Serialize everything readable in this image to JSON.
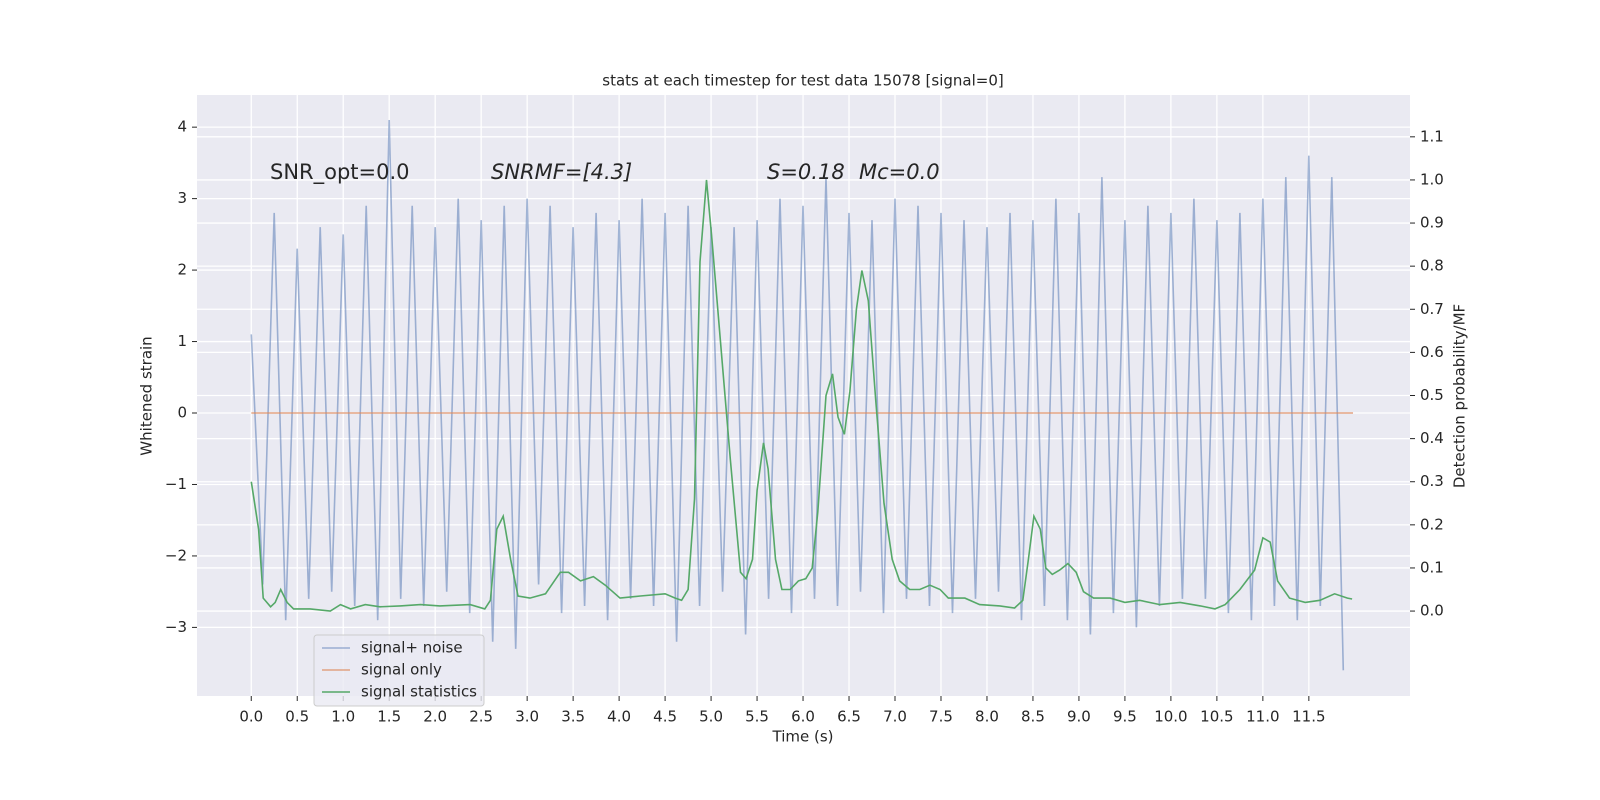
{
  "chart_data": {
    "type": "line",
    "title": "stats at each timestep for test data 15078 [signal=0]",
    "xlabel": "Time (s)",
    "ylabel": "Whitened strain",
    "y2label": "Detection probability/MF",
    "annotations": [
      "SNR_opt=0.0",
      "SNRMF=[4.3]",
      "S=0.18",
      "Mc=0.0"
    ],
    "grid": true,
    "legend": "lower left",
    "xlim": [
      -0.59,
      12.6
    ],
    "ylim": [
      -3.96,
      4.45
    ],
    "y2lim": [
      -0.197,
      1.197
    ],
    "xticks": [
      {
        "value": 0,
        "label": "0.0"
      },
      0.5,
      {
        "value": 1,
        "label": "1.0"
      },
      1.5,
      {
        "value": 2,
        "label": "2.0"
      },
      2.5,
      {
        "value": 3,
        "label": "3.0"
      },
      3.5,
      {
        "value": 4,
        "label": "4.0"
      },
      4.5,
      {
        "value": 5,
        "label": "5.0"
      },
      5.5,
      {
        "value": 6,
        "label": "6.0"
      },
      6.5,
      {
        "value": 7,
        "label": "7.0"
      },
      7.5,
      {
        "value": 8,
        "label": "8.0"
      },
      8.5,
      {
        "value": 9,
        "label": "9.0"
      },
      9.5,
      {
        "value": 10,
        "label": "10.0"
      },
      10.5,
      {
        "value": 11,
        "label": "11.0"
      },
      11.5
    ],
    "yticks": [
      {
        "value": -3,
        "label": "−3"
      },
      {
        "value": -2,
        "label": "−2"
      },
      {
        "value": -1,
        "label": "−1"
      },
      0,
      1,
      2,
      3,
      4
    ],
    "y2ticks": [
      {
        "value": 0,
        "label": "0.0"
      },
      0.1,
      0.2,
      0.3,
      0.4,
      0.5,
      0.6,
      0.7,
      0.8,
      0.9,
      {
        "value": 1,
        "label": "1.0"
      },
      1.1
    ],
    "series": [
      {
        "name": "signal+ noise",
        "color": "#4c72b0",
        "opacity": 0.5,
        "x": [
          0,
          0.125,
          0.25,
          0.375,
          0.5,
          0.625,
          0.75,
          0.875,
          1,
          1.125,
          1.25,
          1.375,
          1.5,
          1.625,
          1.75,
          1.875,
          2,
          2.125,
          2.25,
          2.375,
          2.5,
          2.625,
          2.75,
          2.875,
          3,
          3.125,
          3.25,
          3.375,
          3.5,
          3.625,
          3.75,
          3.875,
          4,
          4.125,
          4.25,
          4.375,
          4.5,
          4.625,
          4.75,
          4.875,
          5,
          5.125,
          5.25,
          5.375,
          5.5,
          5.625,
          5.75,
          5.875,
          6,
          6.125,
          6.25,
          6.375,
          6.5,
          6.625,
          6.75,
          6.875,
          7,
          7.125,
          7.25,
          7.375,
          7.5,
          7.625,
          7.75,
          7.875,
          8,
          8.125,
          8.25,
          8.375,
          8.5,
          8.625,
          8.75,
          8.875,
          9,
          9.125,
          9.25,
          9.375,
          9.5,
          9.625,
          9.75,
          9.875,
          10,
          10.125,
          10.25,
          10.375,
          10.5,
          10.625,
          10.75,
          10.875,
          11,
          11.125,
          11.25,
          11.375,
          11.5,
          11.625,
          11.75,
          11.875
        ],
        "values": [
          1.1,
          -2.4,
          2.8,
          -2.9,
          2.3,
          -2.6,
          2.6,
          -2.5,
          2.5,
          -2.7,
          2.9,
          -2.9,
          4.1,
          -2.6,
          2.9,
          -2.7,
          2.6,
          -2.5,
          3.0,
          -2.8,
          2.7,
          -3.2,
          2.9,
          -3.3,
          3.0,
          -2.4,
          2.9,
          -2.8,
          2.6,
          -2.7,
          2.8,
          -2.9,
          2.7,
          -2.6,
          3.0,
          -2.7,
          2.8,
          -3.2,
          2.9,
          -2.7,
          2.6,
          -2.5,
          2.6,
          -3.1,
          2.7,
          -2.6,
          3.0,
          -2.8,
          2.9,
          -2.6,
          3.3,
          -2.7,
          2.8,
          -2.5,
          2.7,
          -2.8,
          3.0,
          -2.6,
          2.9,
          -2.7,
          2.8,
          -2.8,
          2.7,
          -2.6,
          2.6,
          -2.5,
          2.8,
          -2.9,
          2.7,
          -2.7,
          3.0,
          -2.9,
          2.8,
          -3.1,
          3.3,
          -2.8,
          2.7,
          -3.0,
          2.9,
          -2.7,
          2.8,
          -2.6,
          3.0,
          -2.6,
          2.7,
          -2.8,
          2.8,
          -2.9,
          3.0,
          -2.7,
          3.3,
          -2.9,
          3.6,
          -2.7,
          3.3,
          -3.6
        ]
      },
      {
        "name": "signal only",
        "color": "#dd8452",
        "opacity": 0.7,
        "x": [
          0,
          11.98
        ],
        "values": [
          0,
          0
        ]
      },
      {
        "name": "signal statistics",
        "color": "#55a868",
        "opacity": 1,
        "axis": "y2",
        "x": [
          0,
          0.08,
          0.13,
          0.21,
          0.26,
          0.32,
          0.39,
          0.46,
          0.64,
          0.86,
          0.97,
          1.08,
          1.24,
          1.4,
          1.62,
          1.84,
          2.05,
          2.38,
          2.54,
          2.6,
          2.67,
          2.74,
          2.82,
          2.9,
          3.03,
          3.2,
          3.36,
          3.45,
          3.58,
          3.72,
          3.85,
          4.01,
          4.23,
          4.5,
          4.61,
          4.68,
          4.75,
          4.82,
          4.88,
          4.95,
          5.01,
          5.1,
          5.21,
          5.32,
          5.38,
          5.45,
          5.5,
          5.57,
          5.62,
          5.7,
          5.77,
          5.86,
          5.95,
          6.03,
          6.1,
          6.16,
          6.25,
          6.32,
          6.38,
          6.45,
          6.51,
          6.58,
          6.64,
          6.71,
          6.79,
          6.88,
          6.97,
          7.05,
          7.16,
          7.27,
          7.38,
          7.49,
          7.58,
          7.76,
          7.92,
          8.14,
          8.3,
          8.39,
          8.45,
          8.51,
          8.58,
          8.64,
          8.71,
          8.79,
          8.88,
          8.97,
          9.05,
          9.16,
          9.34,
          9.5,
          9.66,
          9.88,
          10.1,
          10.32,
          10.48,
          10.59,
          10.75,
          10.91,
          11,
          11.08,
          11.16,
          11.29,
          11.46,
          11.62,
          11.78,
          11.92,
          11.97
        ],
        "values": [
          0.3,
          0.19,
          0.03,
          0.01,
          0.02,
          0.05,
          0.02,
          0.005,
          0.005,
          0,
          0.015,
          0.005,
          0.015,
          0.01,
          0.012,
          0.015,
          0.012,
          0.015,
          0.005,
          0.025,
          0.19,
          0.22,
          0.12,
          0.035,
          0.03,
          0.04,
          0.09,
          0.09,
          0.07,
          0.08,
          0.06,
          0.03,
          0.035,
          0.04,
          0.03,
          0.025,
          0.05,
          0.26,
          0.81,
          1.0,
          0.86,
          0.63,
          0.35,
          0.09,
          0.075,
          0.12,
          0.28,
          0.39,
          0.33,
          0.12,
          0.05,
          0.05,
          0.07,
          0.075,
          0.1,
          0.23,
          0.5,
          0.55,
          0.45,
          0.41,
          0.51,
          0.7,
          0.79,
          0.72,
          0.49,
          0.25,
          0.12,
          0.07,
          0.05,
          0.05,
          0.06,
          0.05,
          0.03,
          0.03,
          0.015,
          0.012,
          0.007,
          0.025,
          0.12,
          0.22,
          0.19,
          0.1,
          0.085,
          0.095,
          0.11,
          0.09,
          0.045,
          0.03,
          0.03,
          0.02,
          0.025,
          0.015,
          0.02,
          0.012,
          0.005,
          0.015,
          0.05,
          0.095,
          0.17,
          0.16,
          0.07,
          0.03,
          0.02,
          0.025,
          0.04,
          0.03,
          0.028
        ]
      }
    ]
  }
}
